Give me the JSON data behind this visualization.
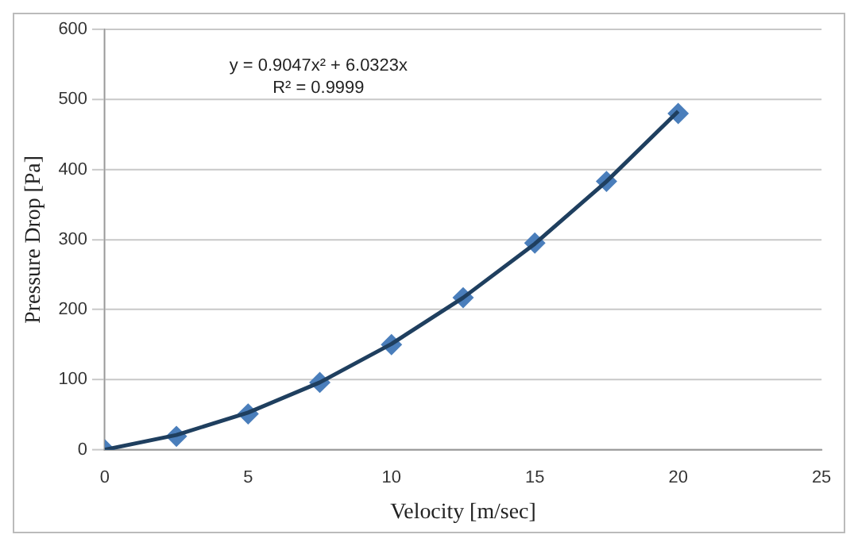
{
  "chart_data": {
    "type": "scatter",
    "xlabel": "Velocity [m/sec]",
    "ylabel": "Pressure Drop [Pa]",
    "annotations": [
      "y = 0.9047x² + 6.0323x",
      "R² = 0.9999"
    ],
    "xlim": [
      0,
      25
    ],
    "xticks": [
      0,
      5,
      10,
      15,
      20,
      25
    ],
    "ylim": [
      0,
      600
    ],
    "yticks": [
      0,
      100,
      200,
      300,
      400,
      500,
      600
    ],
    "grid": "y",
    "legend": false,
    "series": [
      {
        "type": "line",
        "x": [
          0,
          2.5,
          5,
          7.5,
          10,
          12.5,
          15,
          17.5,
          20
        ],
        "values": [
          0,
          21,
          53,
          96,
          151,
          217,
          294,
          383,
          483
        ],
        "color": "#1f3f5f",
        "marker": "none"
      },
      {
        "x": [
          0,
          2.5,
          5,
          7.5,
          10,
          12.5,
          15,
          17.5,
          20
        ],
        "values": [
          0,
          19,
          51,
          96,
          150,
          217,
          295,
          383,
          480
        ],
        "color": "#4a7ebb",
        "marker": "diamond"
      }
    ]
  }
}
